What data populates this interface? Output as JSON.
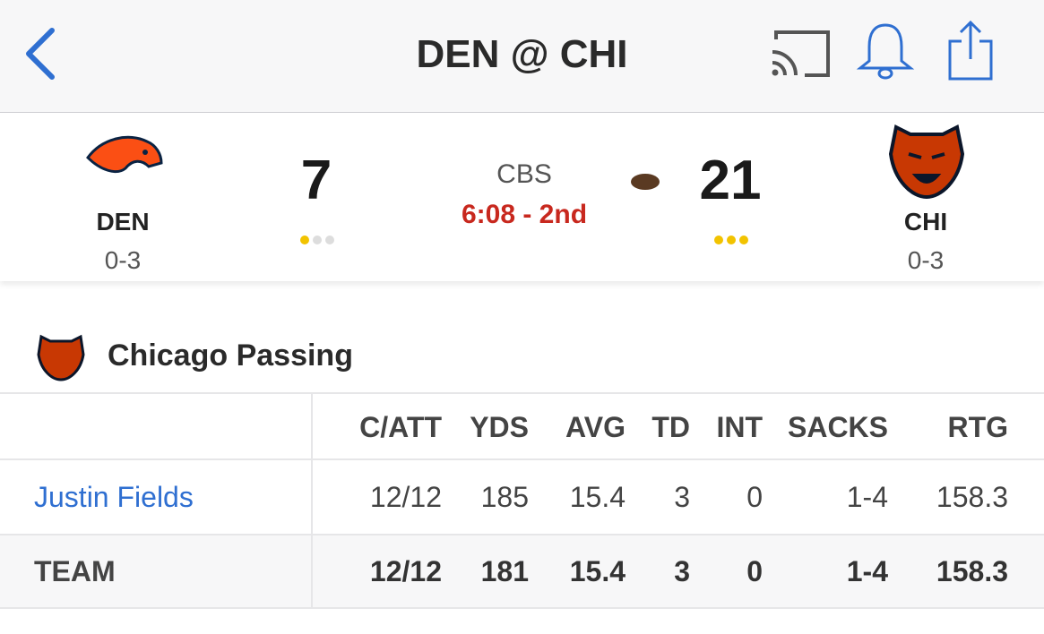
{
  "header": {
    "title": "DEN @ CHI"
  },
  "scoreboard": {
    "away": {
      "abbr": "DEN",
      "record": "0-3",
      "score": 7
    },
    "broadcast": "CBS",
    "clock": "6:08 - 2nd",
    "home": {
      "abbr": "CHI",
      "record": "0-3",
      "score": 21
    }
  },
  "section": {
    "title": "Chicago Passing"
  },
  "table": {
    "columns": [
      "C/ATT",
      "YDS",
      "AVG",
      "TD",
      "INT",
      "SACKS",
      "RTG"
    ],
    "rows": [
      {
        "name": "Justin Fields",
        "cells": [
          "12/12",
          185,
          15.4,
          3,
          0,
          "1-4",
          158.3
        ]
      },
      {
        "name": "TEAM",
        "cells": [
          "12/12",
          181,
          15.4,
          3,
          0,
          "1-4",
          158.3
        ]
      }
    ]
  }
}
